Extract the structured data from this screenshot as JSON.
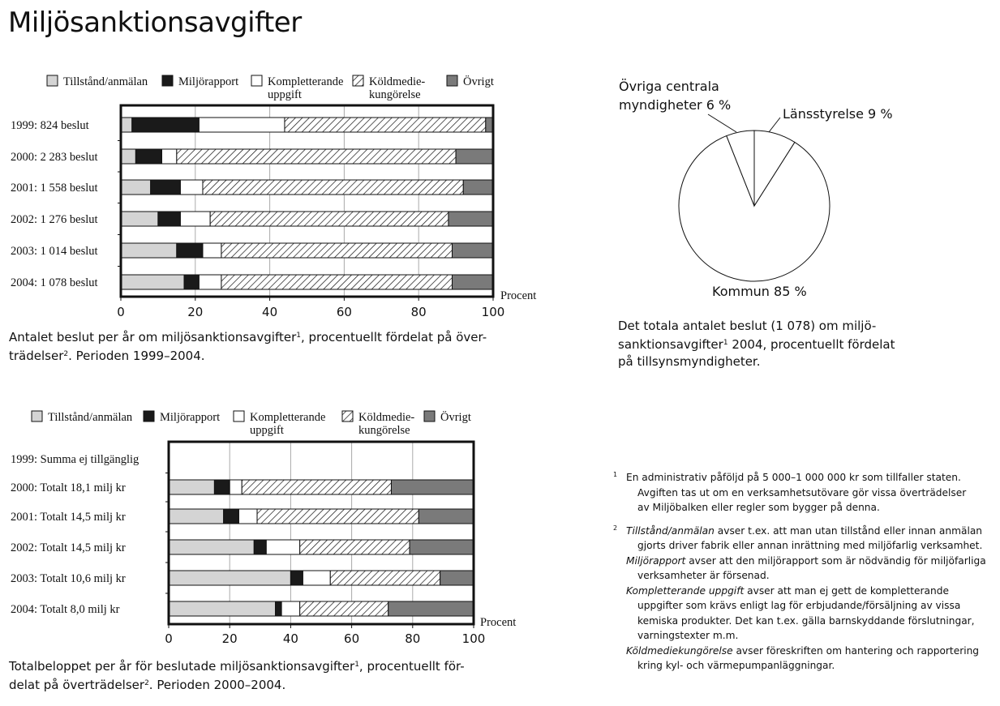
{
  "title": "Miljösanktionsavgifter",
  "legend_labels": [
    {
      "lines": [
        "Tillstånd/anmälan"
      ],
      "fill": "#d4d4d4"
    },
    {
      "lines": [
        "Miljörapport"
      ],
      "fill": "#1a1a1a"
    },
    {
      "lines": [
        "Kompletterande",
        "uppgift"
      ],
      "fill": "#ffffff"
    },
    {
      "lines": [
        "Köldmedie-",
        "kungörelse"
      ],
      "fill": "hatch"
    },
    {
      "lines": [
        "Övrigt"
      ],
      "fill": "#7a7a7a"
    }
  ],
  "chart_data": [
    {
      "type": "bar",
      "stacked": true,
      "orientation": "horizontal",
      "categories": [
        "1999: 824 beslut",
        "2000: 2 283 beslut",
        "2001: 1 558 beslut",
        "2002: 1 276 beslut",
        "2003: 1 014 beslut",
        "2004: 1 078 beslut"
      ],
      "series": [
        {
          "name": "Tillstånd/anmälan",
          "values": [
            3,
            4,
            8,
            10,
            15,
            17
          ]
        },
        {
          "name": "Miljörapport",
          "values": [
            18,
            7,
            8,
            6,
            7,
            4
          ]
        },
        {
          "name": "Kompletterande uppgift",
          "values": [
            23,
            4,
            6,
            8,
            5,
            6
          ]
        },
        {
          "name": "Köldmedie-kungörelse",
          "values": [
            54,
            75,
            70,
            64,
            62,
            62
          ]
        },
        {
          "name": "Övrigt",
          "values": [
            2,
            10,
            8,
            12,
            11,
            11
          ]
        }
      ],
      "xlim": [
        0,
        100
      ],
      "xticks": [
        "0",
        "20",
        "40",
        "60",
        "80",
        "100"
      ],
      "xlabel": "Procent",
      "grid": true,
      "legend": "top",
      "caption": {
        "main": "Antalet beslut per år om miljösanktionsavgifter",
        "sup": "1",
        "rest": ", procentuellt fördelat på över-",
        "line2": "trädelser",
        "sup2": "2",
        "rest2": ". Perioden 1999–2004."
      }
    },
    {
      "type": "bar",
      "stacked": true,
      "orientation": "horizontal",
      "categories": [
        "1999: Summa ej tillgänglig",
        "2000: Totalt 18,1 milj kr",
        "2001: Totalt 14,5 milj kr",
        "2002: Totalt 14,5 milj kr",
        "2003: Totalt 10,6 milj kr",
        "2004: Totalt 8,0 milj kr"
      ],
      "series": [
        {
          "name": "Tillstånd/anmälan",
          "values": [
            null,
            15,
            18,
            28,
            40,
            35
          ]
        },
        {
          "name": "Miljörapport",
          "values": [
            null,
            5,
            5,
            4,
            4,
            2
          ]
        },
        {
          "name": "Kompletterande uppgift",
          "values": [
            null,
            4,
            6,
            11,
            9,
            6
          ]
        },
        {
          "name": "Köldmedie-kungörelse",
          "values": [
            null,
            49,
            53,
            36,
            36,
            29
          ]
        },
        {
          "name": "Övrigt",
          "values": [
            null,
            27,
            18,
            21,
            11,
            28
          ]
        }
      ],
      "xlim": [
        0,
        100
      ],
      "xticks": [
        "0",
        "20",
        "40",
        "60",
        "80",
        "100"
      ],
      "xlabel": "Procent",
      "grid": true,
      "legend": "top",
      "caption": {
        "main": "Totalbeloppet per år för beslutade miljösanktionsavgifter",
        "sup": "1",
        "rest": ", procentuellt för-",
        "line2": "delat på överträdelser",
        "sup2": "2",
        "rest2": ". Perioden 2000–2004."
      }
    },
    {
      "type": "pie",
      "categories": [
        "Kommun",
        "Länsstyrelse",
        "Övriga centrala myndigheter"
      ],
      "values": [
        85,
        9,
        6
      ],
      "labels": [
        [
          "Kommun 85 %"
        ],
        [
          "Länsstyrelse 9 %"
        ],
        [
          "Övriga centrala",
          "myndigheter 6 %"
        ]
      ],
      "caption": {
        "main": "Det totala antalet beslut (1 078) om miljö-",
        "line2a": "sanktionsavgifter",
        "sup": "1",
        "line2b": " 2004, procentuellt fördelat",
        "line3": "på tillsynsmyndigheter."
      }
    }
  ],
  "footnotes": {
    "fn1": {
      "mark": "1",
      "lines": [
        "En administrativ påföljd på 5 000–1 000 000 kr som tillfaller staten.",
        "Avgiften tas ut om en verksamhetsutövare gör vissa överträdelser",
        "av Miljöbalken eller regler som bygger på denna."
      ]
    },
    "fn2": {
      "mark": "2",
      "t1": "Tillstånd/anmälan",
      "t1_rest": " avser t.ex. att man utan tillstånd eller innan anmälan",
      "t1_l2": "gjorts driver fabrik eller annan inrättning med miljöfarlig verksamhet.",
      "t2": "Miljörapport",
      "t2_rest": " avser att den miljörapport som är nödvändig för miljöfarliga",
      "t2_l2": "verksamheter är försenad.",
      "t3": "Kompletterande uppgift",
      "t3_rest": " avser att man ej gett de kompletterande",
      "t3_l2": "uppgifter som krävs enligt lag för erbjudande/försäljning av vissa",
      "t3_l3": "kemiska produkter. Det kan t.ex. gälla barnskyddande förslutningar,",
      "t3_l4": "varningstexter m.m.",
      "t4": "Köldmediekungörelse",
      "t4_rest": " avser föreskriften om hantering och rapportering",
      "t4_l2": "kring kyl- och värmepumpanläggningar."
    }
  }
}
